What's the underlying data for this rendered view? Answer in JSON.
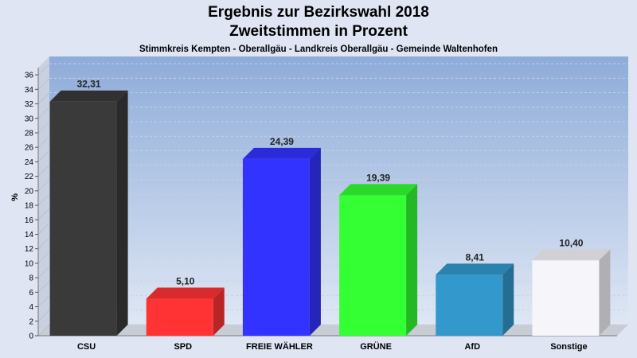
{
  "header": {
    "title_line1": "Ergebnis zur Bezirkswahl 2018",
    "title_line2": "Zweitstimmen in Prozent",
    "subtitle": "Stimmkreis Kempten - Oberallgäu - Landkreis Oberallgäu - Gemeinde Waltenhofen"
  },
  "chart_data": {
    "type": "bar",
    "title": "Ergebnis zur Bezirkswahl 2018 – Zweitstimmen in Prozent",
    "subtitle": "Stimmkreis Kempten - Oberallgäu - Landkreis Oberallgäu - Gemeinde Waltenhofen",
    "xlabel": "",
    "ylabel": "%",
    "ylim": [
      0,
      37
    ],
    "yticks": [
      0,
      2,
      4,
      6,
      8,
      10,
      12,
      14,
      16,
      18,
      20,
      22,
      24,
      26,
      28,
      30,
      32,
      34,
      36
    ],
    "grid": true,
    "categories": [
      "CSU",
      "SPD",
      "FREIE WÄHLER",
      "GRÜNE",
      "AfD",
      "Sonstige"
    ],
    "values": [
      32.31,
      5.1,
      24.39,
      19.39,
      8.41,
      10.4
    ],
    "value_labels": [
      "32,31",
      "5,10",
      "24,39",
      "19,39",
      "8,41",
      "10,40"
    ],
    "colors": [
      "#3a3a3a",
      "#ff3333",
      "#3333ff",
      "#33ff33",
      "#3399cc",
      "#f5f5fa"
    ],
    "plot_background_top": "#8eacd9",
    "plot_background_bottom": "#dfe7f4"
  }
}
